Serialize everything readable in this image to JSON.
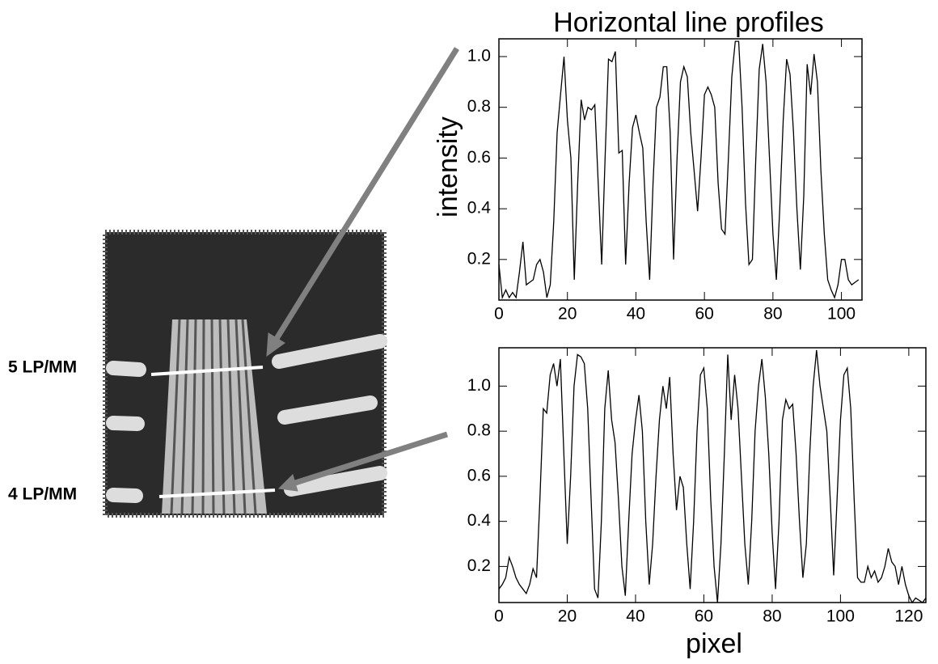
{
  "chart_data": [
    {
      "type": "line",
      "title": "Horizontal line profiles",
      "y_label": "intensity",
      "color": "#000000",
      "x": [
        0,
        1,
        2,
        3,
        4,
        5,
        6,
        7,
        8,
        9,
        10,
        11,
        12,
        13,
        14,
        15,
        16,
        17,
        18,
        19,
        20,
        21,
        22,
        23,
        24,
        25,
        26,
        27,
        28,
        29,
        30,
        31,
        32,
        33,
        34,
        35,
        36,
        37,
        38,
        39,
        40,
        41,
        42,
        43,
        44,
        45,
        46,
        47,
        48,
        49,
        50,
        51,
        52,
        53,
        54,
        55,
        56,
        57,
        58,
        59,
        60,
        61,
        62,
        63,
        64,
        65,
        66,
        67,
        68,
        69,
        70,
        71,
        72,
        73,
        74,
        75,
        76,
        77,
        78,
        79,
        80,
        81,
        82,
        83,
        84,
        85,
        86,
        87,
        88,
        89,
        90,
        91,
        92,
        93,
        94,
        95,
        96,
        97,
        98,
        99,
        100,
        101,
        102,
        103,
        104,
        105
      ],
      "values": [
        0.18,
        0.05,
        0.08,
        0.05,
        0.07,
        0.05,
        0.15,
        0.27,
        0.1,
        0.11,
        0.12,
        0.18,
        0.2,
        0.15,
        0.05,
        0.1,
        0.35,
        0.7,
        0.85,
        1.0,
        0.75,
        0.6,
        0.12,
        0.5,
        0.83,
        0.75,
        0.8,
        0.79,
        0.81,
        0.5,
        0.18,
        0.6,
        0.99,
        0.98,
        1.02,
        0.62,
        0.63,
        0.18,
        0.5,
        0.72,
        0.77,
        0.7,
        0.64,
        0.35,
        0.12,
        0.5,
        0.8,
        0.84,
        0.96,
        0.96,
        0.7,
        0.2,
        0.6,
        0.9,
        0.96,
        0.92,
        0.7,
        0.55,
        0.39,
        0.6,
        0.85,
        0.88,
        0.85,
        0.8,
        0.5,
        0.32,
        0.3,
        0.6,
        0.92,
        1.06,
        1.06,
        0.8,
        0.42,
        0.18,
        0.2,
        0.6,
        0.95,
        1.05,
        0.9,
        0.6,
        0.3,
        0.12,
        0.4,
        0.75,
        0.99,
        0.93,
        0.7,
        0.4,
        0.16,
        0.45,
        0.97,
        0.85,
        1.01,
        0.9,
        0.55,
        0.3,
        0.12,
        0.08,
        0.05,
        0.1,
        0.2,
        0.2,
        0.12,
        0.1,
        0.11,
        0.12
      ],
      "xlim": [
        0,
        106
      ],
      "ylim": [
        0.04,
        1.07
      ],
      "xticks": [
        0,
        20,
        40,
        60,
        80,
        100
      ],
      "yticks": [
        0.2,
        0.4,
        0.6,
        0.8,
        {
          "value": 1,
          "label": "1.0"
        }
      ]
    },
    {
      "type": "line",
      "x_label": "pixel",
      "color": "#000000",
      "x": [
        0,
        1,
        2,
        3,
        4,
        5,
        6,
        7,
        8,
        9,
        10,
        11,
        12,
        13,
        14,
        15,
        16,
        17,
        18,
        19,
        20,
        21,
        22,
        23,
        24,
        25,
        26,
        27,
        28,
        29,
        30,
        31,
        32,
        33,
        34,
        35,
        36,
        37,
        38,
        39,
        40,
        41,
        42,
        43,
        44,
        45,
        46,
        47,
        48,
        49,
        50,
        51,
        52,
        53,
        54,
        55,
        56,
        57,
        58,
        59,
        60,
        61,
        62,
        63,
        64,
        65,
        66,
        67,
        68,
        69,
        70,
        71,
        72,
        73,
        74,
        75,
        76,
        77,
        78,
        79,
        80,
        81,
        82,
        83,
        84,
        85,
        86,
        87,
        88,
        89,
        90,
        91,
        92,
        93,
        94,
        95,
        96,
        97,
        98,
        99,
        100,
        101,
        102,
        103,
        104,
        105,
        106,
        107,
        108,
        109,
        110,
        111,
        112,
        113,
        114,
        115,
        116,
        117,
        118,
        119,
        120,
        121,
        122,
        123,
        124,
        125
      ],
      "values": [
        0.1,
        0.12,
        0.15,
        0.24,
        0.2,
        0.15,
        0.12,
        0.1,
        0.08,
        0.12,
        0.19,
        0.15,
        0.5,
        0.9,
        0.88,
        1.05,
        1.1,
        1.0,
        1.12,
        0.7,
        0.3,
        0.6,
        1.0,
        1.14,
        1.13,
        1.1,
        0.9,
        0.5,
        0.1,
        0.06,
        0.4,
        0.9,
        1.07,
        0.85,
        0.75,
        0.5,
        0.2,
        0.07,
        0.4,
        0.7,
        0.85,
        0.96,
        0.8,
        0.4,
        0.12,
        0.3,
        0.6,
        0.85,
        1.0,
        0.9,
        1.04,
        0.7,
        0.45,
        0.6,
        0.55,
        0.3,
        0.1,
        0.4,
        0.8,
        1.05,
        1.08,
        0.9,
        0.5,
        0.2,
        0.04,
        0.3,
        0.7,
        1.14,
        0.85,
        1.05,
        0.9,
        0.6,
        0.3,
        0.12,
        0.4,
        0.8,
        1.0,
        1.12,
        0.95,
        0.7,
        0.35,
        0.1,
        0.4,
        0.85,
        0.94,
        0.9,
        0.92,
        0.7,
        0.4,
        0.15,
        0.3,
        0.7,
        1.0,
        1.16,
        1.0,
        0.9,
        0.8,
        0.5,
        0.16,
        0.5,
        0.85,
        1.05,
        1.08,
        0.9,
        0.5,
        0.15,
        0.13,
        0.13,
        0.2,
        0.15,
        0.18,
        0.13,
        0.15,
        0.2,
        0.28,
        0.22,
        0.2,
        0.12,
        0.2,
        0.12,
        0.07,
        0.04,
        0.06,
        0.05,
        0.04,
        0.06
      ],
      "xlim": [
        0,
        125
      ],
      "ylim": [
        0.04,
        1.17
      ],
      "xticks": [
        0,
        20,
        40,
        60,
        80,
        100,
        120
      ],
      "yticks": [
        0.2,
        0.4,
        0.6,
        0.8,
        {
          "value": 1,
          "label": "1.0"
        }
      ]
    }
  ],
  "image_labels": [
    "5 LP/MM",
    "4 LP/MM"
  ]
}
